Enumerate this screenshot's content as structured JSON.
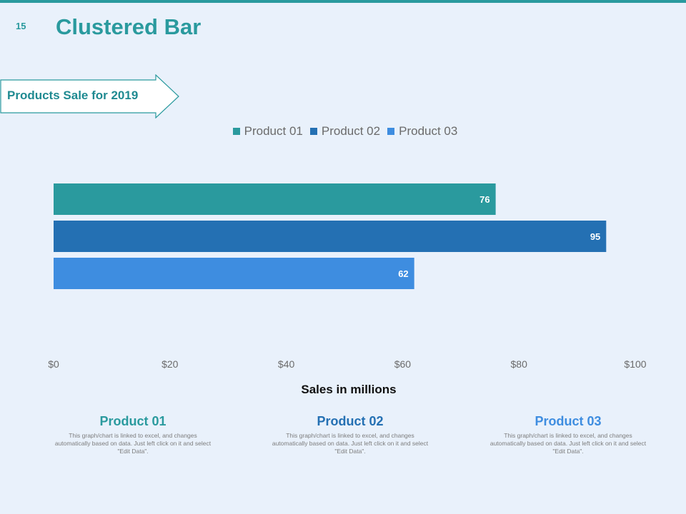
{
  "slide": {
    "number": "15",
    "title": "Clustered Bar",
    "callout": "Products Sale for 2019"
  },
  "colors": {
    "accent": "#2a9a9e",
    "product01": "#2a9a9e",
    "product02": "#2470b3",
    "product03": "#3e8de0"
  },
  "chart_data": {
    "type": "bar",
    "orientation": "horizontal",
    "categories": [
      ""
    ],
    "series": [
      {
        "name": "Product 01",
        "values": [
          76
        ],
        "color": "#2a9a9e"
      },
      {
        "name": "Product 02",
        "values": [
          95
        ],
        "color": "#2470b3"
      },
      {
        "name": "Product 03",
        "values": [
          62
        ],
        "color": "#3e8de0"
      }
    ],
    "xlim": [
      0,
      100
    ],
    "xticks": [
      "$0",
      "$20",
      "$40",
      "$60",
      "$80",
      "$100"
    ],
    "xlabel": "Sales in millions",
    "legend_position": "top",
    "grid": false
  },
  "products": [
    {
      "name": "Product 01",
      "desc": "This graph/chart is linked to excel, and changes automatically based on data. Just left click on it and select \"Edit Data\"."
    },
    {
      "name": "Product 02",
      "desc": "This graph/chart is linked to excel, and changes automatically based on data. Just left click on it and select \"Edit Data\"."
    },
    {
      "name": "Product 03",
      "desc": "This graph/chart is linked to excel, and changes automatically based on data. Just left click on it and select \"Edit Data\"."
    }
  ]
}
